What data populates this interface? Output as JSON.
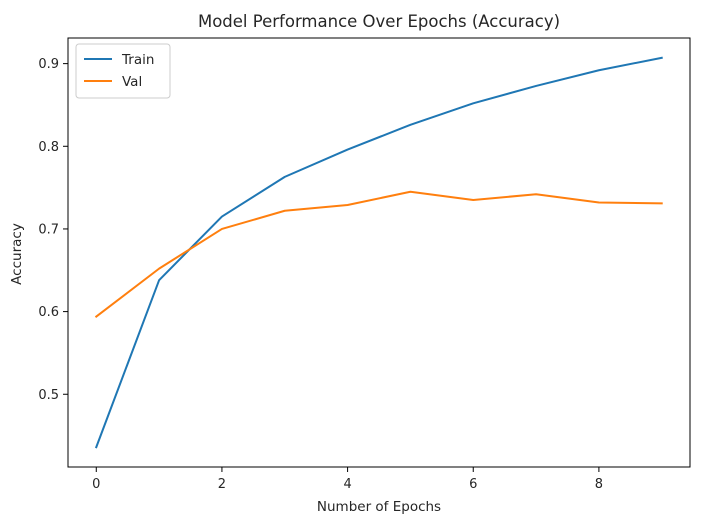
{
  "chart_data": {
    "type": "line",
    "title": "Model Performance Over Epochs (Accuracy)",
    "xlabel": "Number of Epochs",
    "ylabel": "Accuracy",
    "x": [
      0,
      1,
      2,
      3,
      4,
      5,
      6,
      7,
      8,
      9
    ],
    "xticks": [
      0,
      2,
      4,
      6,
      8
    ],
    "yticks": [
      0.5,
      0.6,
      0.7,
      0.8,
      0.9
    ],
    "xlim": [
      -0.45,
      9.45
    ],
    "ylim": [
      0.412,
      0.931
    ],
    "grid": false,
    "legend_position": "top-left",
    "series": [
      {
        "name": "Train",
        "color": "#1f77b4",
        "values": [
          0.436,
          0.638,
          0.715,
          0.763,
          0.796,
          0.826,
          0.852,
          0.873,
          0.892,
          0.907
        ]
      },
      {
        "name": "Val",
        "color": "#ff7f0e",
        "values": [
          0.594,
          0.652,
          0.7,
          0.722,
          0.729,
          0.745,
          0.735,
          0.742,
          0.732,
          0.731
        ]
      }
    ]
  }
}
